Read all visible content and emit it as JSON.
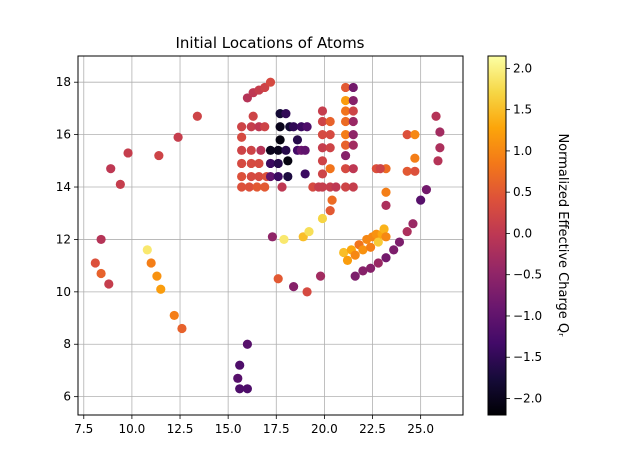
{
  "chart_data": {
    "type": "scatter",
    "title": "Initial Locations of Atoms",
    "xlim": [
      7.2,
      27.2
    ],
    "ylim": [
      5.3,
      19.0
    ],
    "xticks": [
      "7.5",
      "10.0",
      "12.5",
      "15.0",
      "17.5",
      "20.0",
      "22.5",
      "25.0"
    ],
    "yticks": [
      "6",
      "8",
      "10",
      "12",
      "14",
      "16",
      "18"
    ],
    "grid": true,
    "colormap": "inferno",
    "colorbar": {
      "label": "Normalized Effective Charge Qᵣ",
      "range": [
        -2.2,
        2.15
      ],
      "ticks": [
        "−2.0",
        "−1.5",
        "−1.0",
        "−0.5",
        "0.0",
        "0.5",
        "1.0",
        "1.5",
        "2.0"
      ]
    },
    "points": [
      [
        8.1,
        11.1,
        0.4
      ],
      [
        8.4,
        10.7,
        0.6
      ],
      [
        8.8,
        10.3,
        0.1
      ],
      [
        8.4,
        12.0,
        -0.1
      ],
      [
        8.9,
        14.7,
        0.0
      ],
      [
        9.4,
        14.1,
        0.1
      ],
      [
        9.8,
        15.3,
        0.1
      ],
      [
        10.8,
        11.6,
        1.9
      ],
      [
        11.0,
        11.1,
        0.9
      ],
      [
        11.3,
        10.6,
        1.1
      ],
      [
        11.5,
        10.1,
        1.2
      ],
      [
        11.4,
        15.2,
        0.2
      ],
      [
        12.2,
        9.1,
        0.9
      ],
      [
        12.6,
        8.6,
        0.6
      ],
      [
        12.4,
        15.9,
        0.1
      ],
      [
        13.4,
        16.7,
        0.2
      ],
      [
        15.6,
        7.2,
        -1.2
      ],
      [
        15.5,
        6.7,
        -1.1
      ],
      [
        15.6,
        6.3,
        -1.2
      ],
      [
        16.0,
        8.0,
        -1.1
      ],
      [
        16.0,
        6.3,
        -1.2
      ],
      [
        16.0,
        17.4,
        -0.1
      ],
      [
        16.3,
        17.6,
        0.0
      ],
      [
        16.6,
        17.7,
        0.1
      ],
      [
        16.9,
        17.8,
        0.2
      ],
      [
        17.2,
        18.0,
        0.3
      ],
      [
        15.7,
        16.3,
        0.2
      ],
      [
        15.7,
        15.9,
        0.3
      ],
      [
        15.7,
        15.4,
        0.2
      ],
      [
        15.7,
        14.9,
        0.3
      ],
      [
        15.7,
        14.4,
        0.4
      ],
      [
        15.7,
        14.0,
        0.4
      ],
      [
        16.1,
        14.0,
        0.4
      ],
      [
        16.5,
        14.0,
        0.5
      ],
      [
        16.9,
        14.0,
        0.5
      ],
      [
        16.2,
        16.3,
        0.1
      ],
      [
        16.6,
        16.3,
        0.0
      ],
      [
        16.3,
        16.7,
        0.2
      ],
      [
        16.7,
        15.4,
        -0.1
      ],
      [
        16.9,
        16.3,
        0.2
      ],
      [
        16.2,
        15.4,
        0.2
      ],
      [
        16.2,
        14.9,
        0.3
      ],
      [
        16.2,
        14.4,
        0.3
      ],
      [
        16.6,
        14.4,
        0.3
      ],
      [
        16.6,
        14.9,
        0.3
      ],
      [
        17.0,
        14.4,
        0.4
      ],
      [
        17.2,
        15.4,
        -2.0
      ],
      [
        17.2,
        14.9,
        -1.4
      ],
      [
        17.2,
        14.4,
        -1.0
      ],
      [
        17.6,
        15.4,
        -2.0
      ],
      [
        17.6,
        14.9,
        -1.6
      ],
      [
        17.6,
        14.4,
        -1.4
      ],
      [
        17.7,
        15.8,
        -2.1
      ],
      [
        17.7,
        16.3,
        -2.0
      ],
      [
        17.7,
        16.8,
        -1.8
      ],
      [
        18.0,
        16.8,
        -1.5
      ],
      [
        18.2,
        16.3,
        -1.8
      ],
      [
        18.0,
        15.4,
        -1.6
      ],
      [
        18.1,
        15.0,
        -2.1
      ],
      [
        18.1,
        14.4,
        -1.7
      ],
      [
        18.4,
        16.3,
        -1.5
      ],
      [
        18.6,
        15.8,
        -1.6
      ],
      [
        18.6,
        15.4,
        -1.3
      ],
      [
        18.8,
        16.3,
        -1.4
      ],
      [
        18.8,
        15.4,
        -0.9
      ],
      [
        19.0,
        14.5,
        -1.4
      ],
      [
        19.1,
        16.3,
        -1.2
      ],
      [
        19.0,
        15.4,
        -1.0
      ],
      [
        17.3,
        12.1,
        -0.5
      ],
      [
        17.8,
        14.0,
        0.0
      ],
      [
        17.9,
        12.0,
        1.9
      ],
      [
        17.6,
        10.5,
        0.5
      ],
      [
        18.4,
        10.2,
        -0.6
      ],
      [
        18.9,
        12.1,
        1.5
      ],
      [
        19.2,
        12.3,
        1.8
      ],
      [
        19.1,
        10.0,
        0.3
      ],
      [
        19.4,
        14.0,
        0.3
      ],
      [
        19.7,
        14.0,
        0.1
      ],
      [
        19.9,
        16.9,
        0.1
      ],
      [
        19.9,
        16.5,
        0.2
      ],
      [
        19.9,
        16.0,
        0.3
      ],
      [
        19.9,
        15.5,
        0.1
      ],
      [
        19.9,
        15.0,
        0.2
      ],
      [
        19.9,
        14.5,
        0.2
      ],
      [
        19.9,
        14.0,
        0.1
      ],
      [
        19.9,
        12.8,
        1.7
      ],
      [
        19.8,
        10.6,
        -0.3
      ],
      [
        20.3,
        16.5,
        0.6
      ],
      [
        20.3,
        16.0,
        0.3
      ],
      [
        20.3,
        15.5,
        0.2
      ],
      [
        20.3,
        14.0,
        0.1
      ],
      [
        20.3,
        14.7,
        0.8
      ],
      [
        20.4,
        13.5,
        0.7
      ],
      [
        20.3,
        13.1,
        0.5
      ],
      [
        20.6,
        14.0,
        0.0
      ],
      [
        21.1,
        17.8,
        0.5
      ],
      [
        21.1,
        17.3,
        1.2
      ],
      [
        21.1,
        16.9,
        0.8
      ],
      [
        21.1,
        16.5,
        0.7
      ],
      [
        21.1,
        16.0,
        0.9
      ],
      [
        21.1,
        15.6,
        0.6
      ],
      [
        21.1,
        15.2,
        -0.6
      ],
      [
        21.1,
        14.7,
        0.3
      ],
      [
        21.1,
        14.0,
        0.2
      ],
      [
        21.5,
        17.8,
        -0.8
      ],
      [
        21.5,
        17.3,
        -0.6
      ],
      [
        21.5,
        16.9,
        0.2
      ],
      [
        21.5,
        16.5,
        -0.4
      ],
      [
        21.5,
        16.0,
        -0.5
      ],
      [
        21.5,
        15.6,
        -0.3
      ],
      [
        21.5,
        14.7,
        0.0
      ],
      [
        21.5,
        14.0,
        0.1
      ],
      [
        21.0,
        11.5,
        1.5
      ],
      [
        21.2,
        11.2,
        1.2
      ],
      [
        21.4,
        11.6,
        1.3
      ],
      [
        21.6,
        11.4,
        1.0
      ],
      [
        21.8,
        11.8,
        0.8
      ],
      [
        22.0,
        11.6,
        1.1
      ],
      [
        22.2,
        12.0,
        1.0
      ],
      [
        22.4,
        11.7,
        0.9
      ],
      [
        22.5,
        12.1,
        1.0
      ],
      [
        22.7,
        12.2,
        1.1
      ],
      [
        22.8,
        11.9,
        1.6
      ],
      [
        23.0,
        12.2,
        1.3
      ],
      [
        23.1,
        12.4,
        1.4
      ],
      [
        23.2,
        12.1,
        1.0
      ],
      [
        21.6,
        10.6,
        -0.7
      ],
      [
        22.0,
        10.8,
        -0.6
      ],
      [
        22.4,
        10.9,
        -0.6
      ],
      [
        22.8,
        11.1,
        -0.4
      ],
      [
        23.2,
        11.3,
        -0.8
      ],
      [
        23.6,
        11.6,
        -0.7
      ],
      [
        23.9,
        11.9,
        -0.7
      ],
      [
        24.3,
        12.3,
        -0.2
      ],
      [
        24.6,
        12.6,
        -0.4
      ],
      [
        25.0,
        13.5,
        -1.1
      ],
      [
        25.3,
        13.9,
        -0.8
      ],
      [
        22.7,
        14.7,
        0.4
      ],
      [
        23.2,
        14.7,
        0.7
      ],
      [
        23.2,
        13.8,
        0.9
      ],
      [
        23.2,
        13.3,
        -0.2
      ],
      [
        22.9,
        14.7,
        0.2
      ],
      [
        24.3,
        16.0,
        0.4
      ],
      [
        24.7,
        16.0,
        1.0
      ],
      [
        24.7,
        15.1,
        0.9
      ],
      [
        24.3,
        14.6,
        0.5
      ],
      [
        24.7,
        14.6,
        0.4
      ],
      [
        25.8,
        16.7,
        -0.1
      ],
      [
        26.0,
        16.1,
        -0.3
      ],
      [
        26.0,
        15.5,
        -0.2
      ],
      [
        25.9,
        15.0,
        -0.1
      ]
    ]
  }
}
